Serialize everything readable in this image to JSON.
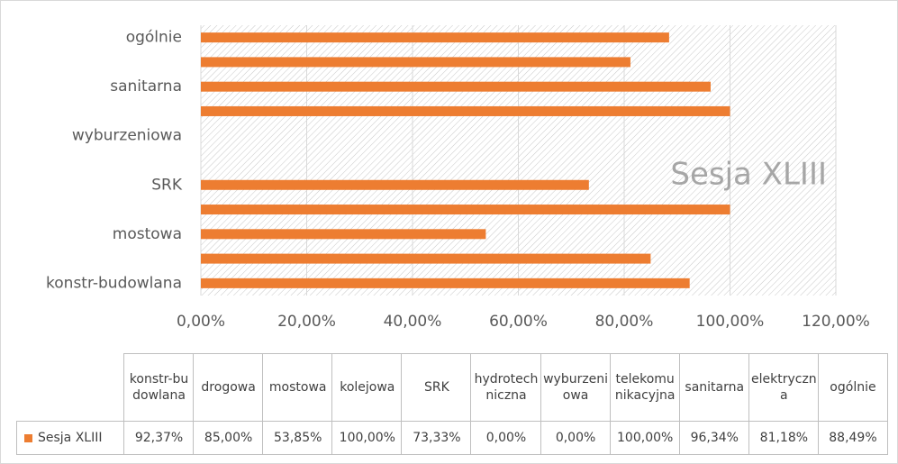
{
  "chart_data": {
    "type": "barh",
    "annotation": "Sesja XLIII",
    "categories": [
      "konstr-budowlana",
      "drogowa",
      "mostowa",
      "kolejowa",
      "SRK",
      "hydrotechniczna",
      "wyburzeniowa",
      "telekomunikacyjna",
      "sanitarna",
      "elektryczna",
      "ogólnie"
    ],
    "series": [
      {
        "name": "Sesja XLIII",
        "color": "#ed7d31",
        "values": [
          92.37,
          85.0,
          53.85,
          100.0,
          73.33,
          0.0,
          0.0,
          100.0,
          96.34,
          81.18,
          88.49
        ],
        "value_labels": [
          "92,37%",
          "85,00%",
          "53,85%",
          "100,00%",
          "73,33%",
          "0,00%",
          "0,00%",
          "100,00%",
          "96,34%",
          "81,18%",
          "88,49%"
        ]
      }
    ],
    "xlim": [
      0,
      120
    ],
    "xticks": [
      {
        "value": 0,
        "label": "0,00%"
      },
      {
        "value": 20,
        "label": "20,00%"
      },
      {
        "value": 40,
        "label": "40,00%"
      },
      {
        "value": 60,
        "label": "60,00%"
      },
      {
        "value": 80,
        "label": "80,00%"
      },
      {
        "value": 100,
        "label": "100,00%"
      },
      {
        "value": 120,
        "label": "120,00%"
      }
    ],
    "grid": true,
    "data_table": true
  }
}
